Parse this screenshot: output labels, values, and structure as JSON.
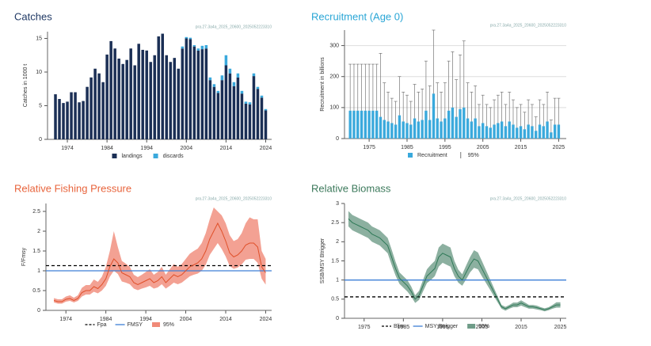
{
  "chart_data": [
    {
      "type": "bar",
      "title": "Catches",
      "title_color": "#1f3864",
      "subtitle": "pra.27.3a4a_2025_20600_2025052223310",
      "y_label": "Catches in 1000 t",
      "grid": false,
      "x": [
        1971,
        1972,
        1973,
        1974,
        1975,
        1976,
        1977,
        1978,
        1979,
        1980,
        1981,
        1982,
        1983,
        1984,
        1985,
        1986,
        1987,
        1988,
        1989,
        1990,
        1991,
        1992,
        1993,
        1994,
        1995,
        1996,
        1997,
        1998,
        1999,
        2000,
        2001,
        2002,
        2003,
        2004,
        2005,
        2006,
        2007,
        2008,
        2009,
        2010,
        2011,
        2012,
        2013,
        2014,
        2015,
        2016,
        2017,
        2018,
        2019,
        2020,
        2021,
        2022,
        2023,
        2024
      ],
      "series": [
        {
          "name": "landings",
          "color": "#1b2f55",
          "values": [
            6.7,
            6.0,
            5.4,
            5.6,
            7.0,
            7.0,
            5.5,
            5.7,
            7.8,
            9.2,
            10.5,
            9.8,
            8.5,
            12.6,
            14.6,
            13.5,
            12.0,
            11.2,
            11.8,
            13.5,
            11.0,
            14.2,
            13.3,
            13.2,
            11.5,
            12.5,
            15.3,
            15.7,
            12.5,
            11.5,
            12.1,
            10.5,
            13.5,
            15.0,
            14.9,
            13.8,
            13.2,
            13.4,
            13.5,
            8.8,
            7.8,
            6.9,
            8.8,
            11.0,
            9.8,
            7.9,
            9.2,
            6.8,
            5.3,
            5.2,
            9.4,
            7.5,
            6.2,
            4.3
          ]
        },
        {
          "name": "discards",
          "color": "#3aa9dc",
          "values": [
            0,
            0,
            0,
            0,
            0,
            0,
            0,
            0,
            0,
            0,
            0,
            0,
            0,
            0,
            0,
            0,
            0,
            0,
            0,
            0,
            0,
            0,
            0,
            0,
            0,
            0,
            0,
            0,
            0,
            0,
            0,
            0,
            0.3,
            0.2,
            0.2,
            0.2,
            0.3,
            0.5,
            0.5,
            0.4,
            0.4,
            0.3,
            0.7,
            1.5,
            0.7,
            0.6,
            0.6,
            0.4,
            0.3,
            0.3,
            0.4,
            0.3,
            0.3,
            0.2
          ]
        }
      ],
      "xlim": [
        1969,
        2025.5
      ],
      "ylim": [
        0,
        16
      ],
      "xticks": [
        1974,
        1984,
        1994,
        2004,
        2014,
        2024
      ],
      "yticks": [
        0,
        5,
        10,
        15
      ]
    },
    {
      "type": "bar",
      "title": "Recruitment (Age 0)",
      "title_color": "#2aa6d6",
      "subtitle": "pra.27.3a4a_2025_20600_2025052223310",
      "y_label": "Recruitment in billions",
      "grid": true,
      "x": [
        1970,
        1971,
        1972,
        1973,
        1974,
        1975,
        1976,
        1977,
        1978,
        1979,
        1980,
        1981,
        1982,
        1983,
        1984,
        1985,
        1986,
        1987,
        1988,
        1989,
        1990,
        1991,
        1992,
        1993,
        1994,
        1995,
        1996,
        1997,
        1998,
        1999,
        2000,
        2001,
        2002,
        2003,
        2004,
        2005,
        2006,
        2007,
        2008,
        2009,
        2010,
        2011,
        2012,
        2013,
        2014,
        2015,
        2016,
        2017,
        2018,
        2019,
        2020,
        2021,
        2022,
        2023,
        2024,
        2025
      ],
      "series": [
        {
          "name": "Recruitment",
          "error_name": "95%",
          "color": "#3aa9dc",
          "values": [
            90,
            90,
            90,
            90,
            90,
            90,
            90,
            90,
            70,
            60,
            55,
            50,
            45,
            75,
            55,
            50,
            45,
            65,
            55,
            60,
            90,
            60,
            145,
            65,
            55,
            65,
            90,
            100,
            70,
            95,
            100,
            65,
            55,
            65,
            40,
            50,
            40,
            35,
            45,
            50,
            55,
            40,
            55,
            45,
            35,
            40,
            30,
            45,
            40,
            25,
            45,
            40,
            55,
            20,
            45,
            45
          ],
          "upper": [
            240,
            240,
            240,
            240,
            240,
            240,
            240,
            240,
            275,
            180,
            150,
            130,
            120,
            200,
            150,
            140,
            120,
            175,
            150,
            160,
            250,
            170,
            350,
            180,
            150,
            180,
            250,
            280,
            190,
            270,
            315,
            180,
            150,
            170,
            110,
            140,
            110,
            100,
            125,
            140,
            150,
            110,
            150,
            125,
            100,
            110,
            85,
            125,
            110,
            70,
            125,
            110,
            150,
            60,
            130,
            130
          ]
        }
      ],
      "xlim": [
        1968.5,
        2027
      ],
      "ylim": [
        0,
        350
      ],
      "xticks": [
        1975,
        1985,
        1995,
        2005,
        2015,
        2025
      ],
      "yticks": [
        0,
        100,
        200,
        300
      ]
    },
    {
      "type": "line",
      "title": "Relative Fishing Pressure",
      "title_color": "#e8643c",
      "subtitle": "pra.27.3a4a_2025_20600_2025052223310",
      "y_label": "F/Fmsy",
      "grid": false,
      "x": [
        1971,
        1972,
        1973,
        1974,
        1975,
        1976,
        1977,
        1978,
        1979,
        1980,
        1981,
        1982,
        1983,
        1984,
        1985,
        1986,
        1987,
        1988,
        1989,
        1990,
        1991,
        1992,
        1993,
        1994,
        1995,
        1996,
        1997,
        1998,
        1999,
        2000,
        2001,
        2002,
        2003,
        2004,
        2005,
        2006,
        2007,
        2008,
        2009,
        2010,
        2011,
        2012,
        2013,
        2014,
        2015,
        2016,
        2017,
        2018,
        2019,
        2020,
        2021,
        2022,
        2023,
        2024
      ],
      "line_color": "#e0502a",
      "band_color": "#f08a78",
      "band_name": "95%",
      "values": [
        0.25,
        0.22,
        0.22,
        0.28,
        0.3,
        0.25,
        0.3,
        0.45,
        0.5,
        0.5,
        0.6,
        0.55,
        0.65,
        0.8,
        1.1,
        1.3,
        1.2,
        0.95,
        0.9,
        0.85,
        0.7,
        0.65,
        0.7,
        0.75,
        0.8,
        0.7,
        0.75,
        0.85,
        0.7,
        0.8,
        0.9,
        0.85,
        0.9,
        1.0,
        1.1,
        1.15,
        1.2,
        1.3,
        1.5,
        1.8,
        2.0,
        2.2,
        2.0,
        1.75,
        1.45,
        1.35,
        1.4,
        1.5,
        1.65,
        1.7,
        1.7,
        1.6,
        1.1,
        0.95
      ],
      "low": [
        0.2,
        0.17,
        0.17,
        0.22,
        0.24,
        0.2,
        0.24,
        0.35,
        0.4,
        0.4,
        0.47,
        0.43,
        0.5,
        0.62,
        0.85,
        1.0,
        0.92,
        0.73,
        0.7,
        0.66,
        0.55,
        0.51,
        0.55,
        0.58,
        0.62,
        0.55,
        0.58,
        0.66,
        0.55,
        0.62,
        0.7,
        0.66,
        0.7,
        0.78,
        0.86,
        0.9,
        0.93,
        1.0,
        1.15,
        1.4,
        1.55,
        1.7,
        1.55,
        1.36,
        1.12,
        1.05,
        1.08,
        1.16,
        1.28,
        1.3,
        1.3,
        1.2,
        0.8,
        0.65
      ],
      "high": [
        0.31,
        0.28,
        0.28,
        0.35,
        0.38,
        0.32,
        0.38,
        0.57,
        0.64,
        0.64,
        0.78,
        0.72,
        0.85,
        1.1,
        1.5,
        2.0,
        1.6,
        1.25,
        1.18,
        1.1,
        0.9,
        0.84,
        0.9,
        0.97,
        1.04,
        0.9,
        0.97,
        1.1,
        0.9,
        1.04,
        1.17,
        1.1,
        1.17,
        1.3,
        1.43,
        1.5,
        1.56,
        1.7,
        1.95,
        2.3,
        2.6,
        2.5,
        2.4,
        2.2,
        1.9,
        1.75,
        1.8,
        1.95,
        2.2,
        2.35,
        2.3,
        2.3,
        1.5,
        1.3
      ],
      "reference_lines": [
        {
          "name": "Fpa",
          "value": 1.13,
          "color": "#000000",
          "dashed": true
        },
        {
          "name": "FMSY",
          "value": 1,
          "color": "#3d7fd6",
          "dashed": false
        }
      ],
      "xlim": [
        1969,
        2025.5
      ],
      "ylim": [
        0,
        2.7
      ],
      "xticks": [
        1974,
        1984,
        1994,
        2004,
        2014,
        2024
      ],
      "yticks": [
        0,
        0.5,
        1,
        1.5,
        2,
        2.5
      ]
    },
    {
      "type": "line",
      "title": "Relative Biomass",
      "title_color": "#3d7a5c",
      "subtitle": "pra.27.3a4a_2025_20600_2025052223310",
      "y_label": "SSB/MSY Btrigger",
      "grid": false,
      "x": [
        1971,
        1972,
        1973,
        1974,
        1975,
        1976,
        1977,
        1978,
        1979,
        1980,
        1981,
        1982,
        1983,
        1984,
        1985,
        1986,
        1987,
        1988,
        1989,
        1990,
        1991,
        1992,
        1993,
        1994,
        1995,
        1996,
        1997,
        1998,
        1999,
        2000,
        2001,
        2002,
        2003,
        2004,
        2005,
        2006,
        2007,
        2008,
        2009,
        2010,
        2011,
        2012,
        2013,
        2014,
        2015,
        2016,
        2017,
        2018,
        2019,
        2020,
        2021,
        2022,
        2023,
        2024,
        2025
      ],
      "line_color": "#2f7a58",
      "band_color": "#6f9c88",
      "band_name": "95%",
      "values": [
        2.6,
        2.5,
        2.45,
        2.4,
        2.35,
        2.3,
        2.2,
        2.15,
        2.1,
        2.0,
        1.9,
        1.6,
        1.3,
        1.05,
        0.95,
        0.85,
        0.7,
        0.5,
        0.6,
        0.85,
        1.1,
        1.2,
        1.3,
        1.6,
        1.7,
        1.65,
        1.6,
        1.3,
        1.1,
        1.0,
        1.2,
        1.4,
        1.55,
        1.5,
        1.3,
        1.1,
        0.9,
        0.7,
        0.5,
        0.3,
        0.25,
        0.3,
        0.35,
        0.35,
        0.4,
        0.35,
        0.3,
        0.3,
        0.28,
        0.25,
        0.22,
        0.25,
        0.3,
        0.35,
        0.35
      ],
      "low": [
        2.4,
        2.3,
        2.25,
        2.2,
        2.15,
        2.1,
        2.0,
        1.95,
        1.9,
        1.8,
        1.7,
        1.4,
        1.12,
        0.9,
        0.8,
        0.7,
        0.57,
        0.4,
        0.48,
        0.7,
        0.92,
        1.0,
        1.1,
        1.35,
        1.45,
        1.4,
        1.35,
        1.1,
        0.93,
        0.85,
        1.02,
        1.2,
        1.32,
        1.28,
        1.1,
        0.93,
        0.76,
        0.59,
        0.42,
        0.25,
        0.2,
        0.25,
        0.29,
        0.29,
        0.33,
        0.29,
        0.25,
        0.25,
        0.23,
        0.21,
        0.18,
        0.21,
        0.25,
        0.28,
        0.28
      ],
      "high": [
        2.8,
        2.7,
        2.65,
        2.6,
        2.55,
        2.5,
        2.4,
        2.35,
        2.3,
        2.2,
        2.1,
        1.8,
        1.48,
        1.2,
        1.1,
        1.0,
        0.83,
        0.6,
        0.72,
        1.0,
        1.28,
        1.4,
        1.5,
        1.85,
        1.95,
        1.9,
        1.85,
        1.5,
        1.27,
        1.15,
        1.38,
        1.6,
        1.78,
        1.72,
        1.5,
        1.27,
        1.04,
        0.81,
        0.58,
        0.35,
        0.3,
        0.35,
        0.41,
        0.41,
        0.47,
        0.41,
        0.35,
        0.35,
        0.33,
        0.29,
        0.26,
        0.29,
        0.35,
        0.42,
        0.42
      ],
      "reference_lines": [
        {
          "name": "Blim",
          "value": 0.56,
          "color": "#000000",
          "dashed": true
        },
        {
          "name": "MSY Btrigger",
          "value": 1,
          "color": "#3d7fd6",
          "dashed": false
        }
      ],
      "xlim": [
        1970,
        2026.5
      ],
      "ylim": [
        0,
        3
      ],
      "xticks": [
        1975,
        1985,
        1995,
        2005,
        2015,
        2025
      ],
      "yticks": [
        0,
        0.5,
        1,
        1.5,
        2,
        2.5,
        3
      ]
    }
  ]
}
